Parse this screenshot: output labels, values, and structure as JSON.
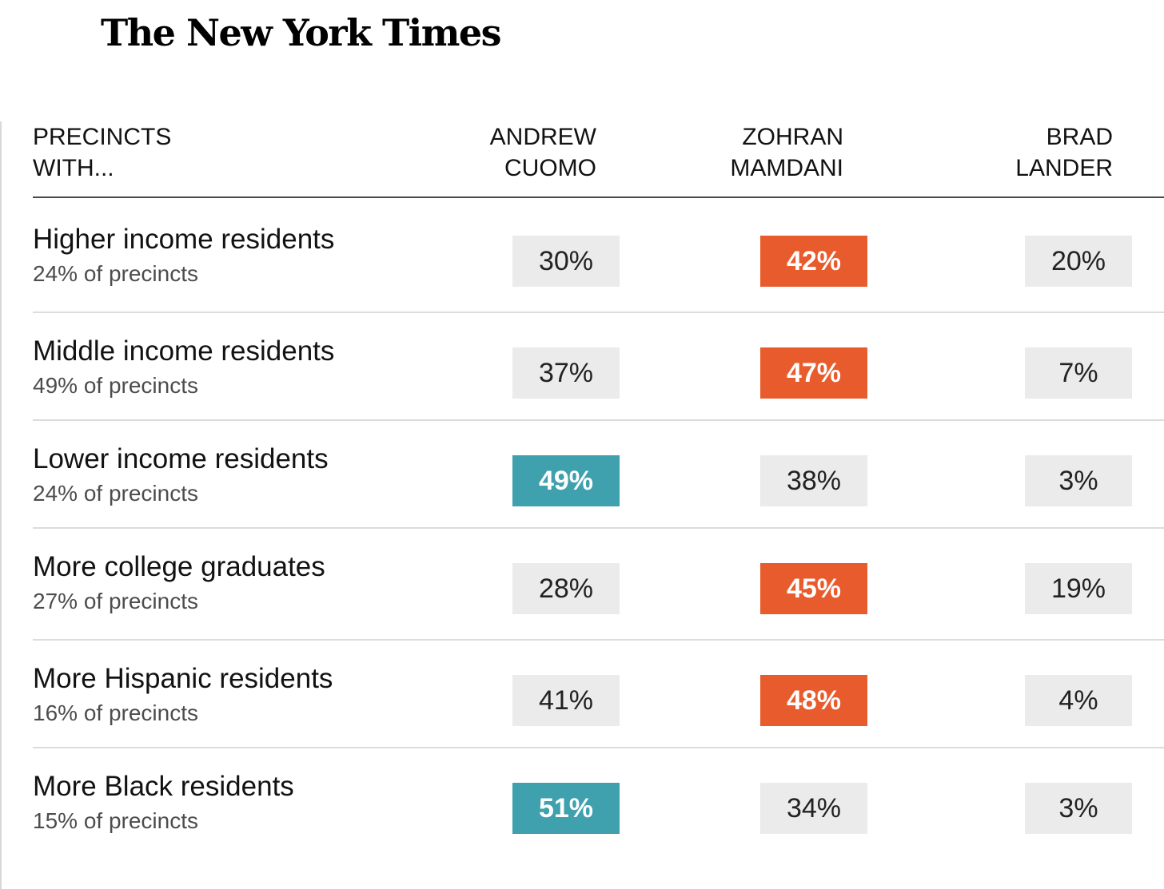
{
  "logo": "The New York Times",
  "header": {
    "row_label": "PRECINCTS\nWITH...",
    "candidates": [
      "ANDREW\nCUOMO",
      "ZOHRAN\nMAMDANI",
      "BRAD\nLANDER"
    ]
  },
  "colors": {
    "cuomo_win": "#3fa0ae",
    "mamdani_win": "#e85b2c",
    "neutral_cell": "#ebebeb"
  },
  "chart_data": {
    "type": "table",
    "columns": [
      "ANDREW CUOMO",
      "ZOHRAN MAMDANI",
      "BRAD LANDER"
    ],
    "rows": [
      {
        "label": "Higher income residents",
        "sub": "24% of precincts",
        "values": [
          "30%",
          "42%",
          "20%"
        ],
        "winner": 1
      },
      {
        "label": "Middle income residents",
        "sub": "49% of precincts",
        "values": [
          "37%",
          "47%",
          "7%"
        ],
        "winner": 1
      },
      {
        "label": "Lower income residents",
        "sub": "24% of precincts",
        "values": [
          "49%",
          "38%",
          "3%"
        ],
        "winner": 0
      },
      {
        "label": "More college graduates",
        "sub": "27% of precincts",
        "values": [
          "28%",
          "45%",
          "19%"
        ],
        "winner": 1
      },
      {
        "label": "More Hispanic residents",
        "sub": "16% of precincts",
        "values": [
          "41%",
          "48%",
          "4%"
        ],
        "winner": 1
      },
      {
        "label": "More Black residents",
        "sub": "15% of precincts",
        "values": [
          "51%",
          "34%",
          "3%"
        ],
        "winner": 0
      }
    ]
  }
}
